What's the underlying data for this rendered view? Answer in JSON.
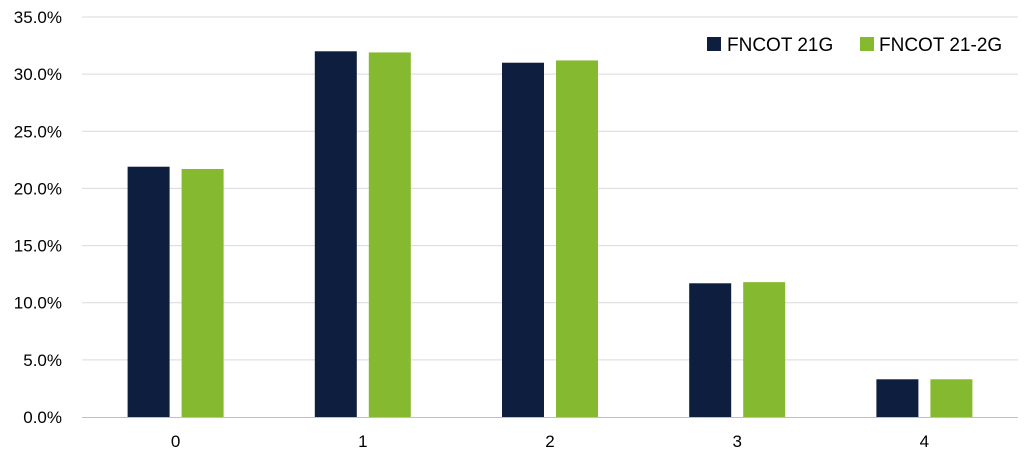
{
  "chart_data": {
    "type": "bar",
    "categories": [
      "0",
      "1",
      "2",
      "3",
      "4"
    ],
    "series": [
      {
        "name": "FNCOT 21G",
        "color": "#0e1e3e",
        "values": [
          21.9,
          32.0,
          31.0,
          11.7,
          3.3
        ]
      },
      {
        "name": "FNCOT 21-2G",
        "color": "#85b92f",
        "values": [
          21.7,
          31.9,
          31.2,
          11.8,
          3.3
        ]
      }
    ],
    "y_ticks": [
      "0.0%",
      "5.0%",
      "10.0%",
      "15.0%",
      "20.0%",
      "25.0%",
      "30.0%",
      "35.0%"
    ],
    "ylim": [
      0,
      35
    ],
    "grid": true,
    "legend_position": "top-right",
    "title": "",
    "xlabel": "",
    "ylabel": ""
  }
}
